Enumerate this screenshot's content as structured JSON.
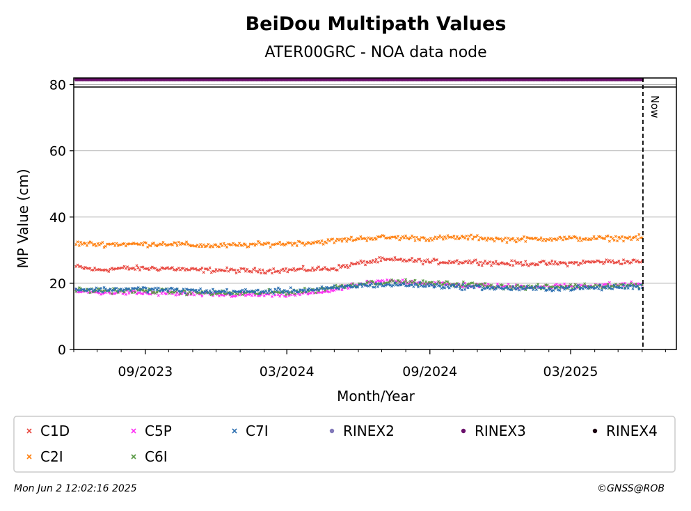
{
  "chart_data": {
    "type": "scatter",
    "title": "BeiDou Multipath Values",
    "subtitle": "ATER00GRC - NOA data node",
    "xlabel": "Month/Year",
    "ylabel": "MP Value (cm)",
    "ylim": [
      0,
      82
    ],
    "yticks": [
      0,
      20,
      40,
      60,
      80
    ],
    "xlim": [
      "2023-06-01",
      "2025-07-15"
    ],
    "xticks": [
      {
        "date": "2023-09-01",
        "label": "09/2023"
      },
      {
        "date": "2024-03-01",
        "label": "03/2024"
      },
      {
        "date": "2024-09-01",
        "label": "09/2024"
      },
      {
        "date": "2025-03-01",
        "label": "03/2025"
      }
    ],
    "grid": "horizontal",
    "now_marker": {
      "date": "2025-06-02",
      "label": "Now"
    },
    "legend_placement": "bottom",
    "series": [
      {
        "name": "C1D",
        "color": "#e8473f",
        "marker": "x",
        "points": [
          [
            "2023-06-04",
            25
          ],
          [
            "2023-07-01",
            24
          ],
          [
            "2023-08-01",
            24.5
          ],
          [
            "2023-09-01",
            24.5
          ],
          [
            "2023-10-01",
            24.5
          ],
          [
            "2023-11-01",
            24
          ],
          [
            "2023-12-01",
            24
          ],
          [
            "2024-01-01",
            23.8
          ],
          [
            "2024-02-01",
            23.8
          ],
          [
            "2024-03-01",
            24
          ],
          [
            "2024-04-01",
            24.2
          ],
          [
            "2024-05-01",
            24.5
          ],
          [
            "2024-06-01",
            26
          ],
          [
            "2024-07-01",
            27
          ],
          [
            "2024-08-01",
            27
          ],
          [
            "2024-09-01",
            26.5
          ],
          [
            "2024-10-01",
            26.5
          ],
          [
            "2024-11-01",
            26.5
          ],
          [
            "2024-12-01",
            26
          ],
          [
            "2025-01-01",
            26
          ],
          [
            "2025-02-01",
            26
          ],
          [
            "2025-03-01",
            26
          ],
          [
            "2025-04-01",
            26.5
          ],
          [
            "2025-05-01",
            26.5
          ],
          [
            "2025-06-01",
            26.5
          ]
        ]
      },
      {
        "name": "C2I",
        "color": "#ff7f0e",
        "marker": "x",
        "points": [
          [
            "2023-06-04",
            32
          ],
          [
            "2023-07-01",
            31.8
          ],
          [
            "2023-08-01",
            31.8
          ],
          [
            "2023-09-01",
            31.8
          ],
          [
            "2023-10-01",
            32
          ],
          [
            "2023-11-01",
            31.5
          ],
          [
            "2023-12-01",
            31.3
          ],
          [
            "2024-01-01",
            31.5
          ],
          [
            "2024-02-01",
            31.8
          ],
          [
            "2024-03-01",
            32
          ],
          [
            "2024-04-01",
            32.3
          ],
          [
            "2024-05-01",
            32.8
          ],
          [
            "2024-06-01",
            33.5
          ],
          [
            "2024-07-01",
            33.8
          ],
          [
            "2024-08-01",
            33.8
          ],
          [
            "2024-09-01",
            33.5
          ],
          [
            "2024-10-01",
            33.8
          ],
          [
            "2024-11-01",
            33.8
          ],
          [
            "2024-12-01",
            33.2
          ],
          [
            "2025-01-01",
            33.3
          ],
          [
            "2025-02-01",
            33.5
          ],
          [
            "2025-03-01",
            33.5
          ],
          [
            "2025-04-01",
            33.5
          ],
          [
            "2025-05-01",
            33.6
          ],
          [
            "2025-06-01",
            33.8
          ]
        ]
      },
      {
        "name": "C5P",
        "color": "#ff2ef5",
        "marker": "x",
        "points": [
          [
            "2023-06-04",
            17.5
          ],
          [
            "2023-07-01",
            17.2
          ],
          [
            "2023-08-01",
            17.2
          ],
          [
            "2023-09-01",
            17
          ],
          [
            "2023-10-01",
            17
          ],
          [
            "2023-11-01",
            16.8
          ],
          [
            "2023-12-01",
            16.5
          ],
          [
            "2024-01-01",
            16.5
          ],
          [
            "2024-02-01",
            16.5
          ],
          [
            "2024-03-01",
            16.5
          ],
          [
            "2024-04-01",
            17
          ],
          [
            "2024-05-01",
            18
          ],
          [
            "2024-06-01",
            19.5
          ],
          [
            "2024-07-01",
            20.5
          ],
          [
            "2024-08-01",
            20.5
          ],
          [
            "2024-09-01",
            20
          ],
          [
            "2024-10-01",
            19.5
          ],
          [
            "2024-11-01",
            19.3
          ],
          [
            "2024-12-01",
            19
          ],
          [
            "2025-01-01",
            19
          ],
          [
            "2025-02-01",
            19
          ],
          [
            "2025-03-01",
            19.2
          ],
          [
            "2025-04-01",
            19.4
          ],
          [
            "2025-05-01",
            19.5
          ],
          [
            "2025-06-01",
            19.8
          ]
        ]
      },
      {
        "name": "C6I",
        "color": "#5a9a46",
        "marker": "x",
        "points": [
          [
            "2023-06-04",
            18
          ],
          [
            "2023-07-01",
            17.8
          ],
          [
            "2023-08-01",
            17.8
          ],
          [
            "2023-09-01",
            17.8
          ],
          [
            "2023-10-01",
            17.5
          ],
          [
            "2023-11-01",
            17.3
          ],
          [
            "2023-12-01",
            17
          ],
          [
            "2024-01-01",
            17
          ],
          [
            "2024-02-01",
            17.2
          ],
          [
            "2024-03-01",
            17.3
          ],
          [
            "2024-04-01",
            17.8
          ],
          [
            "2024-05-01",
            18.8
          ],
          [
            "2024-06-01",
            19.8
          ],
          [
            "2024-07-01",
            20.3
          ],
          [
            "2024-08-01",
            20.3
          ],
          [
            "2024-09-01",
            20
          ],
          [
            "2024-10-01",
            19.8
          ],
          [
            "2024-11-01",
            19.5
          ],
          [
            "2024-12-01",
            19
          ],
          [
            "2025-01-01",
            18.8
          ],
          [
            "2025-02-01",
            18.8
          ],
          [
            "2025-03-01",
            19
          ],
          [
            "2025-04-01",
            19.2
          ],
          [
            "2025-05-01",
            19.3
          ],
          [
            "2025-06-01",
            19.5
          ]
        ]
      },
      {
        "name": "C7I",
        "color": "#2c6fb0",
        "marker": "x",
        "points": [
          [
            "2023-06-04",
            18.2
          ],
          [
            "2023-07-01",
            18
          ],
          [
            "2023-08-01",
            18.2
          ],
          [
            "2023-09-01",
            18.2
          ],
          [
            "2023-10-01",
            18
          ],
          [
            "2023-11-01",
            17.8
          ],
          [
            "2023-12-01",
            17.5
          ],
          [
            "2024-01-01",
            17.5
          ],
          [
            "2024-02-01",
            17.5
          ],
          [
            "2024-03-01",
            17.8
          ],
          [
            "2024-04-01",
            18
          ],
          [
            "2024-05-01",
            18.5
          ],
          [
            "2024-06-01",
            19.3
          ],
          [
            "2024-07-01",
            19.5
          ],
          [
            "2024-08-01",
            19.5
          ],
          [
            "2024-09-01",
            19.3
          ],
          [
            "2024-10-01",
            19
          ],
          [
            "2024-11-01",
            18.8
          ],
          [
            "2024-12-01",
            18.5
          ],
          [
            "2025-01-01",
            18.4
          ],
          [
            "2025-02-01",
            18.4
          ],
          [
            "2025-03-01",
            18.5
          ],
          [
            "2025-04-01",
            18.6
          ],
          [
            "2025-05-01",
            18.8
          ],
          [
            "2025-06-01",
            19
          ]
        ]
      },
      {
        "name": "RINEX2",
        "color": "#8178b9",
        "marker": "dot",
        "points": []
      },
      {
        "name": "RINEX3",
        "color": "#6a0f6b",
        "marker": "dot",
        "points": [
          [
            "2023-06-04",
            81.5
          ],
          [
            "2025-06-01",
            81.5
          ]
        ]
      },
      {
        "name": "RINEX4",
        "color": "#1a0010",
        "marker": "dot",
        "points": []
      }
    ]
  },
  "footer": {
    "timestamp": "Mon Jun  2 12:02:16 2025",
    "credit": "©GNSS@ROB"
  }
}
